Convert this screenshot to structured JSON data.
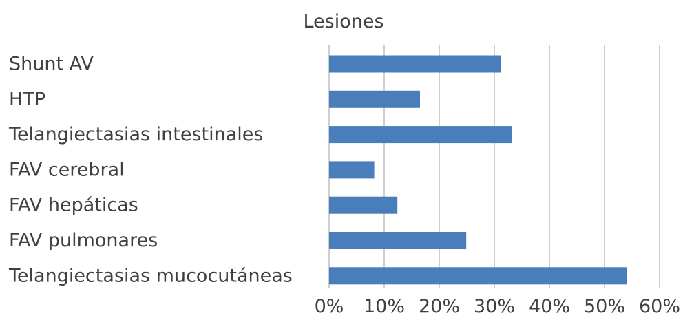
{
  "chart_data": {
    "type": "bar",
    "orientation": "horizontal",
    "title": "Lesiones",
    "xlabel": "",
    "ylabel": "",
    "categories": [
      "Shunt AV",
      "HTP",
      "Telangiectasias intestinales",
      "FAV cerebral",
      "FAV hepáticas",
      "FAV pulmonares",
      "Telangiectasias mucocutáneas"
    ],
    "values": [
      0.312,
      0.165,
      0.332,
      0.082,
      0.124,
      0.249,
      0.541
    ],
    "xlim": [
      0,
      0.6
    ],
    "x_ticks": [
      0,
      0.1,
      0.2,
      0.3,
      0.4,
      0.5,
      0.6
    ],
    "x_tick_labels": [
      "0%",
      "10%",
      "20%",
      "30%",
      "40%",
      "50%",
      "60%"
    ],
    "grid": "vertical",
    "legend": "none",
    "bar_color": "#4a7ebb"
  }
}
